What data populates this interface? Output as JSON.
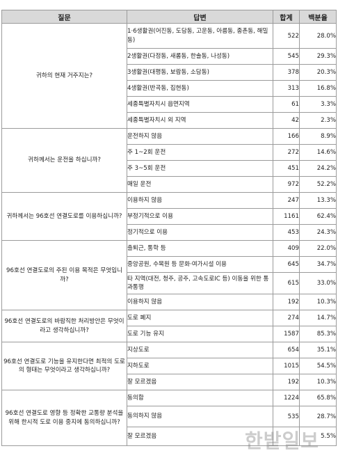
{
  "headers": {
    "question": "질문",
    "answer": "답변",
    "total": "합계",
    "percent": "백분율"
  },
  "questions": [
    {
      "question": "귀하의 현재 거주지는?",
      "rows": [
        {
          "answer": "1·6생활권(어진동, 도담동, 고운동, 아름동, 종촌동, 해밀동)",
          "total": "522",
          "percent": "28.0%"
        },
        {
          "answer": "2생활권(다정동, 새롬동, 한솔동, 나성동)",
          "total": "545",
          "percent": "29.3%"
        },
        {
          "answer": "3생활권(대평동, 보람동, 소담동)",
          "total": "378",
          "percent": "20.3%"
        },
        {
          "answer": "4생활권(반곡동, 집현동)",
          "total": "313",
          "percent": "16.8%"
        },
        {
          "answer": "세종특별자치시 읍면지역",
          "total": "61",
          "percent": "3.3%"
        },
        {
          "answer": "세종특별자치시 외 지역",
          "total": "42",
          "percent": "2.3%"
        }
      ]
    },
    {
      "question": "귀하께서는 운전을 하십니까?",
      "rows": [
        {
          "answer": "운전하지 않음",
          "total": "166",
          "percent": "8.9%"
        },
        {
          "answer": "주 1~2회 운전",
          "total": "272",
          "percent": "14.6%"
        },
        {
          "answer": "주 3~5회 운전",
          "total": "451",
          "percent": "24.2%"
        },
        {
          "answer": "매일 운전",
          "total": "972",
          "percent": "52.2%"
        }
      ]
    },
    {
      "question": "귀하께서는 96호선 연결도로를 이용하십니까?",
      "rows": [
        {
          "answer": "이용하지 않음",
          "total": "247",
          "percent": "13.3%"
        },
        {
          "answer": "부정기적으로 이용",
          "total": "1161",
          "percent": "62.4%"
        },
        {
          "answer": "정기적으로 이용",
          "total": "453",
          "percent": "24.3%"
        }
      ]
    },
    {
      "question": "96호선 연결도로의 주된 이용 목적은 무엇입니까?",
      "rows": [
        {
          "answer": "출퇴근, 통학 등",
          "total": "409",
          "percent": "22.0%"
        },
        {
          "answer": "중앙공원, 수목원 등 문화·여가시설 이용",
          "total": "645",
          "percent": "34.7%"
        },
        {
          "answer": "타 지역(대전, 청주, 공주, 고속도로IC 등) 이동을 위한 통과통행",
          "total": "615",
          "percent": "33.0%"
        },
        {
          "answer": "이용하지 않음",
          "total": "192",
          "percent": "10.3%"
        }
      ]
    },
    {
      "question": "96호선 연결도로의 바람직한 처리방안은 무엇이라고 생각하십니까?",
      "rows": [
        {
          "answer": "도로 폐지",
          "total": "274",
          "percent": "14.7%"
        },
        {
          "answer": "도로 기능 유지",
          "total": "1587",
          "percent": "85.3%"
        }
      ]
    },
    {
      "question": "96호선 연결도로 기능을 유지한다면 최적의 도로의 형태는 무엇이라고 생각하십니까?",
      "rows": [
        {
          "answer": "지상도로",
          "total": "654",
          "percent": "35.1%"
        },
        {
          "answer": "지하도로",
          "total": "1015",
          "percent": "54.5%"
        },
        {
          "answer": "잘 모르겠음",
          "total": "192",
          "percent": "10.3%"
        }
      ]
    },
    {
      "question": "96호선 연결도로 영향 등 정확한 교통량 분석을 위해 한시적 도로 이용 중지에 동의하십니까?",
      "rows": [
        {
          "answer": "동의함",
          "total": "1224",
          "percent": "65.8%"
        },
        {
          "answer": "동의하지 않음",
          "total": "535",
          "percent": "28.7%"
        },
        {
          "answer": "잘 모르겠음",
          "total": "",
          "percent": "5.5%"
        }
      ]
    }
  ],
  "watermark": "한밭일보"
}
